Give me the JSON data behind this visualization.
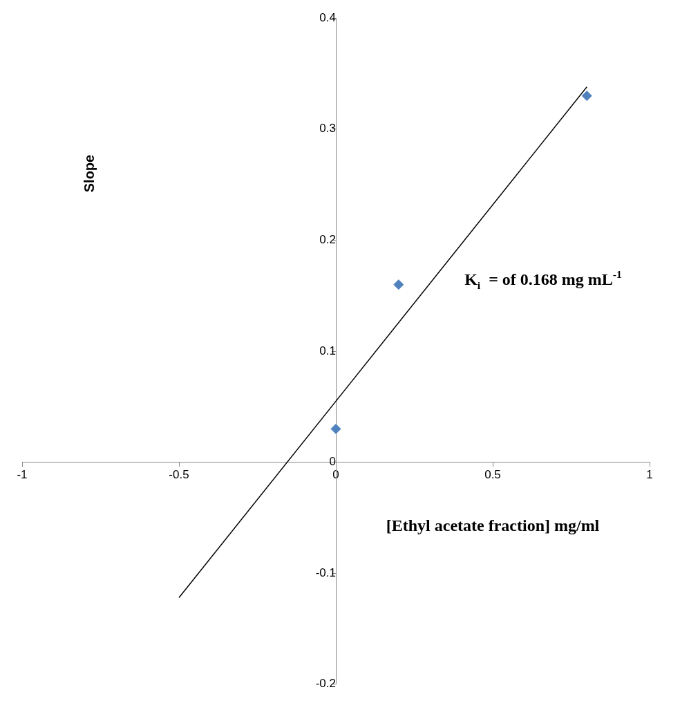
{
  "chart_data": {
    "type": "scatter",
    "xlabel": "[Ethyl acetate fraction] mg/ml",
    "ylabel": "Slope",
    "annotations": [
      "K$_{i}$  = of 0.168 mg mL$^{-1}$"
    ],
    "series": [
      {
        "type": "scatter",
        "color": "#4f81bd",
        "marker": "diamond",
        "x": [
          0,
          0.2,
          0.8
        ],
        "values": [
          0.03,
          0.16,
          0.33
        ]
      },
      {
        "type": "line",
        "color": "#000000",
        "marker": "none",
        "line_style": "solid",
        "x": [
          -0.5,
          0.8
        ],
        "values": [
          -0.122,
          0.338
        ]
      }
    ],
    "xlim": [
      -1,
      1
    ],
    "xticks": [
      -1,
      -0.5,
      0,
      0.5,
      1
    ],
    "ylim": [
      -0.2,
      0.4
    ],
    "yticks": [
      -0.2,
      -0.1,
      0,
      0.1,
      0.2,
      0.3,
      0.4
    ],
    "grid": false,
    "legend": false
  }
}
